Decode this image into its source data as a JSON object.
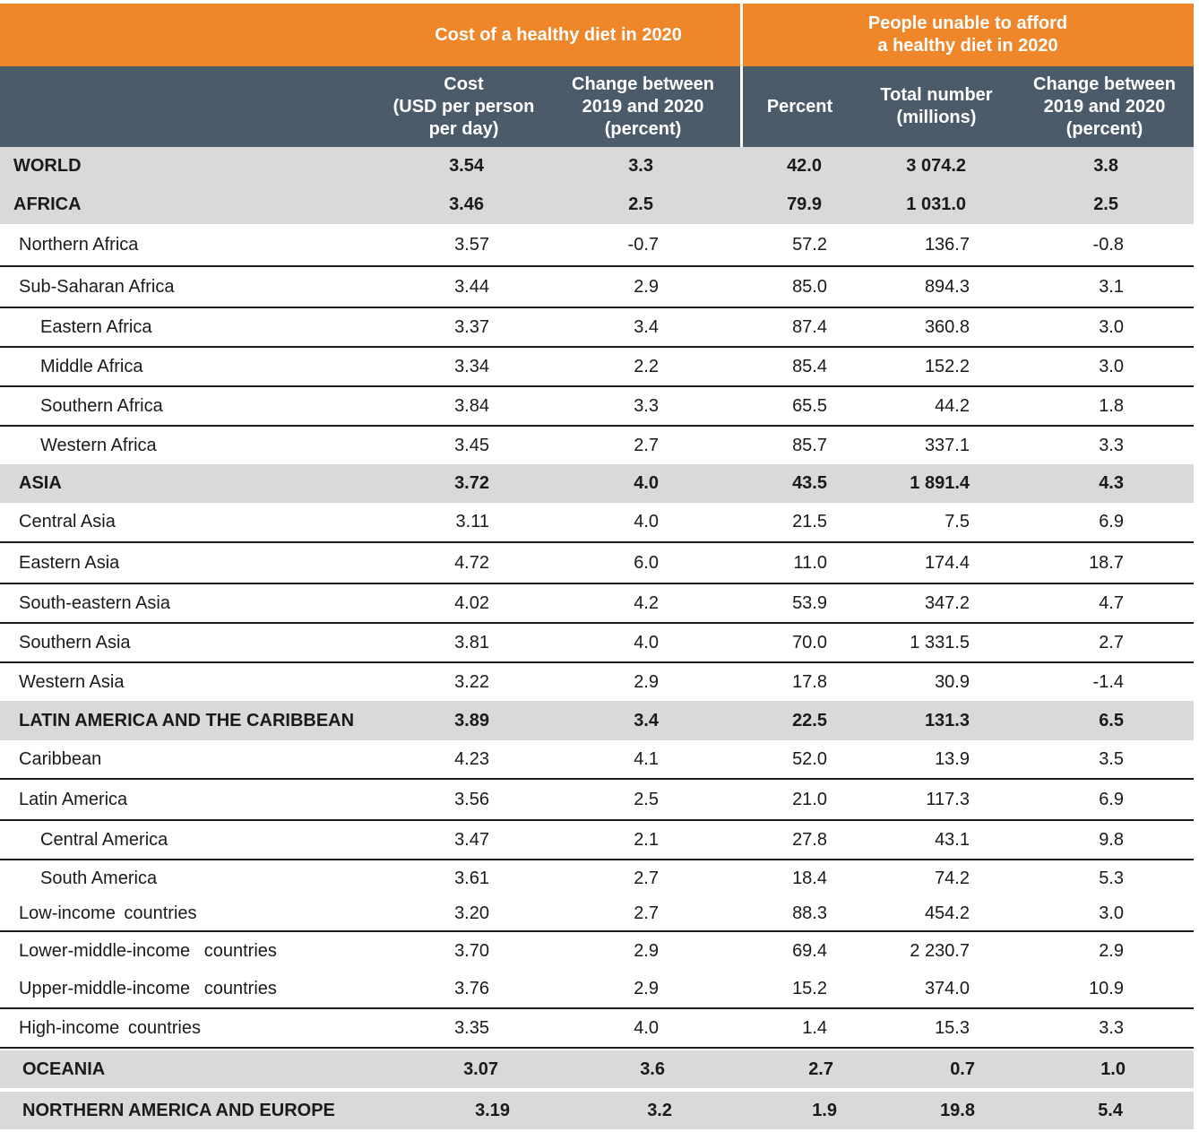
{
  "header": {
    "group1": "Cost of a healthy diet in 2020",
    "group2": "People unable to afford\na healthy diet in 2020",
    "cols": [
      "Cost\n(USD per person\nper day)",
      "Change between\n2019 and 2020\n(percent)",
      "Percent",
      "Total number\n(millions)",
      "Change between\n2019 and 2020\n(percent)"
    ]
  },
  "rows": [
    {
      "name": "WORLD",
      "cost": "3.54",
      "cost_change": "3.3",
      "percent": "42.0",
      "total": "3 074.2",
      "change": "3.8"
    },
    {
      "name": "AFRICA",
      "cost": "3.46",
      "cost_change": "2.5",
      "percent": "79.9",
      "total": "1 031.0",
      "change": "2.5"
    },
    {
      "name": "Northern Africa",
      "cost": "3.57",
      "cost_change": "-0.7",
      "percent": "57.2",
      "total": "136.7",
      "change": "-0.8"
    },
    {
      "name": "Sub-Saharan Africa",
      "cost": "3.44",
      "cost_change": "2.9",
      "percent": "85.0",
      "total": "894.3",
      "change": "3.1"
    },
    {
      "name": "Eastern Africa",
      "cost": "3.37",
      "cost_change": "3.4",
      "percent": "87.4",
      "total": "360.8",
      "change": "3.0"
    },
    {
      "name": "Middle Africa",
      "cost": "3.34",
      "cost_change": "2.2",
      "percent": "85.4",
      "total": "152.2",
      "change": "3.0"
    },
    {
      "name": "Southern Africa",
      "cost": "3.84",
      "cost_change": "3.3",
      "percent": "65.5",
      "total": "44.2",
      "change": "1.8"
    },
    {
      "name": "Western Africa",
      "cost": "3.45",
      "cost_change": "2.7",
      "percent": "85.7",
      "total": "337.1",
      "change": "3.3"
    },
    {
      "name": "ASIA",
      "cost": "3.72",
      "cost_change": "4.0",
      "percent": "43.5",
      "total": "1 891.4",
      "change": "4.3"
    },
    {
      "name": "Central Asia",
      "cost": "3.11",
      "cost_change": "4.0",
      "percent": "21.5",
      "total": "7.5",
      "change": "6.9"
    },
    {
      "name": "Eastern Asia",
      "cost": "4.72",
      "cost_change": "6.0",
      "percent": "11.0",
      "total": "174.4",
      "change": "18.7"
    },
    {
      "name": "South-eastern Asia",
      "cost": "4.02",
      "cost_change": "4.2",
      "percent": "53.9",
      "total": "347.2",
      "change": "4.7"
    },
    {
      "name": "Southern Asia",
      "cost": "3.81",
      "cost_change": "4.0",
      "percent": "70.0",
      "total": "1 331.5",
      "change": "2.7"
    },
    {
      "name": "Western Asia",
      "cost": "3.22",
      "cost_change": "2.9",
      "percent": "17.8",
      "total": "30.9",
      "change": "-1.4"
    },
    {
      "name": "LATIN AMERICA AND THE CARIBBEAN",
      "cost": "3.89",
      "cost_change": "3.4",
      "percent": "22.5",
      "total": "131.3",
      "change": "6.5"
    },
    {
      "name": "Caribbean",
      "cost": "4.23",
      "cost_change": "4.1",
      "percent": "52.0",
      "total": "13.9",
      "change": "3.5"
    },
    {
      "name": "Latin America",
      "cost": "3.56",
      "cost_change": "2.5",
      "percent": "21.0",
      "total": "117.3",
      "change": "6.9"
    },
    {
      "name": "Central America",
      "cost": "3.47",
      "cost_change": "2.1",
      "percent": "27.8",
      "total": "43.1",
      "change": "9.8"
    },
    {
      "name": "South America",
      "cost": "3.61",
      "cost_change": "2.7",
      "percent": "18.4",
      "total": "74.2",
      "change": "5.3"
    },
    {
      "name": "Low-income countries",
      "cost": "3.20",
      "cost_change": "2.7",
      "percent": "88.3",
      "total": "454.2",
      "change": "3.0"
    },
    {
      "name": "Lower-middle-income countries",
      "cost": "3.70",
      "cost_change": "2.9",
      "percent": "69.4",
      "total": "2 230.7",
      "change": "2.9"
    },
    {
      "name": "Upper-middle-income countries",
      "cost": "3.76",
      "cost_change": "2.9",
      "percent": "15.2",
      "total": "374.0",
      "change": "10.9"
    },
    {
      "name": "High-income countries",
      "cost": "3.35",
      "cost_change": "4.0",
      "percent": "1.4",
      "total": "15.3",
      "change": "3.3"
    },
    {
      "name": "OCEANIA",
      "cost": "3.07",
      "cost_change": "3.6",
      "percent": "2.7",
      "total": "0.7",
      "change": "1.0"
    },
    {
      "name": "NORTHERN AMERICA AND EUROPE",
      "cost": "3.19",
      "cost_change": "3.2",
      "percent": "1.9",
      "total": "19.8",
      "change": "5.4"
    }
  ]
}
